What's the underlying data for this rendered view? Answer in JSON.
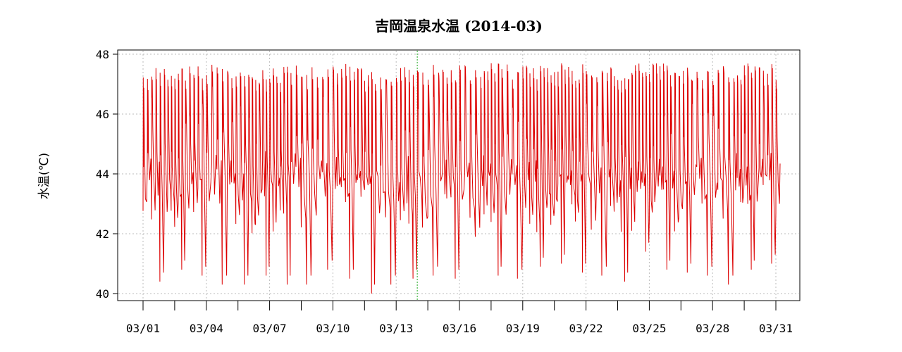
{
  "chart_data": {
    "type": "line",
    "title": "吉岡温泉水温 (2014-03)",
    "ylabel": "水温(℃)",
    "xlabel": "",
    "xlim": [
      "2014-03-01",
      "2014-03-31"
    ],
    "ylim": [
      40,
      48
    ],
    "y_ticks": [
      40,
      42,
      44,
      46,
      48
    ],
    "x_tick_labels": [
      "03/01",
      "03/04",
      "03/07",
      "03/10",
      "03/13",
      "03/16",
      "03/19",
      "03/22",
      "03/25",
      "03/28",
      "03/31"
    ],
    "grid": true,
    "marker_date": "2014-03-14",
    "series": [
      {
        "name": "",
        "color": "#dd0000",
        "x": [
          "03/01",
          "03/02",
          "03/03",
          "03/04",
          "03/05",
          "03/06",
          "03/07",
          "03/08",
          "03/09",
          "03/10",
          "03/11",
          "03/12",
          "03/13",
          "03/14",
          "03/15",
          "03/16",
          "03/17",
          "03/18",
          "03/19",
          "03/20",
          "03/21",
          "03/22",
          "03/23",
          "03/24",
          "03/25",
          "03/26",
          "03/27",
          "03/28",
          "03/29",
          "03/30",
          "03/31"
        ],
        "daily_min": [
          40.4,
          40.8,
          40.6,
          40.3,
          40.3,
          40.6,
          40.3,
          40.3,
          40.8,
          40.5,
          40.0,
          40.3,
          40.5,
          40.6,
          40.5,
          41.9,
          40.6,
          40.5,
          40.9,
          41.0,
          40.7,
          40.6,
          40.4,
          41.4,
          40.8,
          40.7,
          40.6,
          40.3,
          40.8,
          41.0,
          40.8
        ],
        "daily_max": [
          47.6,
          47.6,
          47.6,
          47.7,
          47.6,
          47.6,
          47.6,
          47.8,
          47.7,
          47.7,
          47.7,
          47.6,
          47.6,
          47.7,
          47.7,
          47.7,
          47.7,
          47.7,
          47.7,
          47.7,
          47.7,
          47.7,
          47.7,
          47.7,
          47.7,
          47.7,
          47.7,
          47.7,
          47.7,
          47.7,
          47.7
        ],
        "note_shape": "repeated rapid heating to ~47.7 followed by cooling decay, several cycles per day"
      }
    ]
  }
}
